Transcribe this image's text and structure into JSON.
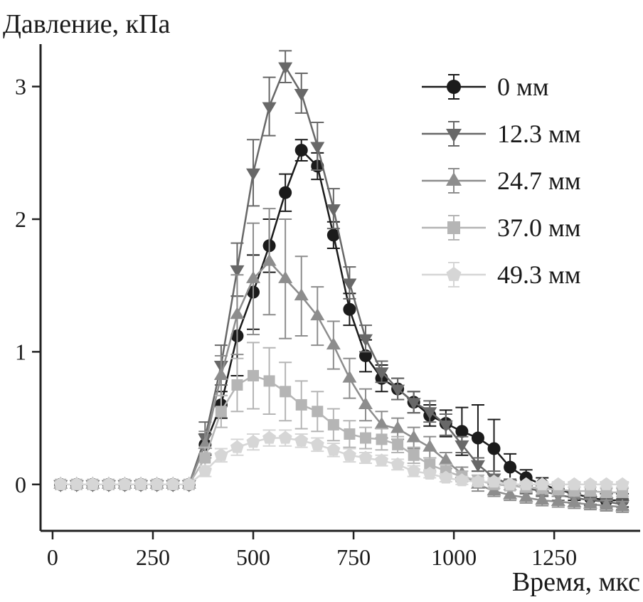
{
  "chart_data": {
    "type": "line",
    "title": "",
    "xlabel": "Время, мкс",
    "ylabel": "Давление, кПа",
    "xlim": [
      -30,
      1450
    ],
    "ylim": [
      -0.35,
      3.32
    ],
    "xticks": [
      0,
      250,
      500,
      750,
      1000,
      1250
    ],
    "yticks": [
      0,
      1,
      2,
      3
    ],
    "grid": false,
    "legend_position": "top-right",
    "x": [
      20,
      60,
      100,
      140,
      180,
      220,
      260,
      300,
      340,
      380,
      420,
      460,
      500,
      540,
      580,
      620,
      660,
      700,
      740,
      780,
      820,
      860,
      900,
      940,
      980,
      1020,
      1060,
      1100,
      1140,
      1180,
      1220,
      1260,
      1300,
      1340,
      1380,
      1420
    ],
    "series": [
      {
        "name": "0 мм",
        "marker": "circle",
        "color": "#1b1b1b",
        "values": [
          0,
          0,
          0,
          0,
          0,
          0,
          0,
          0,
          0,
          0.3,
          0.6,
          1.12,
          1.45,
          1.8,
          2.2,
          2.52,
          2.4,
          1.88,
          1.32,
          0.97,
          0.8,
          0.72,
          0.62,
          0.52,
          0.46,
          0.4,
          0.35,
          0.27,
          0.13,
          0.05,
          0,
          -0.04,
          -0.07,
          -0.1,
          -0.12,
          -0.12
        ],
        "errors": [
          0,
          0,
          0,
          0,
          0,
          0,
          0,
          0,
          0,
          0.08,
          0.1,
          0.3,
          0.28,
          0.2,
          0.14,
          0.08,
          0.1,
          0.1,
          0.12,
          0.12,
          0.1,
          0.08,
          0.08,
          0.08,
          0.1,
          0.18,
          0.25,
          0.22,
          0.1,
          0.06,
          0.05,
          0.05,
          0.05,
          0.05,
          0.05,
          0.05
        ]
      },
      {
        "name": "12.3 мм",
        "marker": "triangle-down",
        "color": "#686868",
        "values": [
          0,
          0,
          0,
          0,
          0,
          0,
          0,
          0,
          0,
          0.35,
          0.9,
          1.62,
          2.35,
          2.85,
          3.15,
          2.95,
          2.55,
          2.08,
          1.52,
          1.1,
          0.85,
          0.72,
          0.62,
          0.55,
          0.45,
          0.3,
          0.15,
          0.05,
          0,
          -0.03,
          -0.05,
          -0.08,
          -0.1,
          -0.12,
          -0.13,
          -0.15
        ],
        "errors": [
          0,
          0,
          0,
          0,
          0,
          0,
          0,
          0,
          0,
          0.12,
          0.15,
          0.2,
          0.25,
          0.22,
          0.12,
          0.15,
          0.18,
          0.15,
          0.12,
          0.1,
          0.08,
          0.08,
          0.08,
          0.08,
          0.08,
          0.06,
          0.05,
          0.05,
          0.04,
          0.04,
          0.04,
          0.04,
          0.04,
          0.04,
          0.04,
          0.04
        ]
      },
      {
        "name": "24.7 мм",
        "marker": "triangle-up",
        "color": "#8d8d8d",
        "values": [
          0,
          0,
          0,
          0,
          0,
          0,
          0,
          0,
          0,
          0.3,
          0.82,
          1.28,
          1.55,
          1.68,
          1.55,
          1.42,
          1.27,
          1.05,
          0.8,
          0.6,
          0.45,
          0.42,
          0.35,
          0.28,
          0.18,
          0.08,
          0,
          -0.05,
          -0.08,
          -0.1,
          -0.12,
          -0.13,
          -0.14,
          -0.15,
          -0.16,
          -0.17
        ],
        "errors": [
          0,
          0,
          0,
          0,
          0,
          0,
          0,
          0,
          0,
          0.1,
          0.15,
          0.3,
          0.42,
          0.4,
          0.45,
          0.3,
          0.22,
          0.18,
          0.15,
          0.12,
          0.1,
          0.08,
          0.08,
          0.08,
          0.06,
          0.05,
          0.05,
          0.04,
          0.04,
          0.04,
          0.04,
          0.04,
          0.04,
          0.04,
          0.04,
          0.04
        ]
      },
      {
        "name": "37.0 мм",
        "marker": "square",
        "color": "#b5b5b5",
        "values": [
          0,
          0,
          0,
          0,
          0,
          0,
          0,
          0,
          0,
          0.2,
          0.55,
          0.75,
          0.82,
          0.78,
          0.7,
          0.6,
          0.55,
          0.45,
          0.38,
          0.35,
          0.34,
          0.3,
          0.22,
          0.15,
          0.1,
          0.06,
          0.03,
          0,
          -0.01,
          -0.02,
          -0.03,
          -0.04,
          -0.05,
          -0.05,
          -0.06,
          -0.06
        ],
        "errors": [
          0,
          0,
          0,
          0,
          0,
          0,
          0,
          0,
          0,
          0.08,
          0.12,
          0.2,
          0.25,
          0.25,
          0.22,
          0.18,
          0.15,
          0.12,
          0.1,
          0.08,
          0.08,
          0.06,
          0.06,
          0.05,
          0.05,
          0.04,
          0.04,
          0.03,
          0.03,
          0.03,
          0.03,
          0.03,
          0.03,
          0.03,
          0.03,
          0.03
        ]
      },
      {
        "name": "49.3 мм",
        "marker": "pentagon",
        "color": "#d6d6d6",
        "values": [
          0,
          0,
          0,
          0,
          0,
          0,
          0,
          0,
          0,
          0.1,
          0.22,
          0.28,
          0.32,
          0.35,
          0.35,
          0.33,
          0.3,
          0.26,
          0.22,
          0.2,
          0.18,
          0.15,
          0.1,
          0.08,
          0.05,
          0.03,
          0.02,
          0.02,
          0,
          0,
          0,
          0,
          0,
          0,
          0,
          0
        ],
        "errors": [
          0,
          0,
          0,
          0,
          0,
          0,
          0,
          0,
          0,
          0.04,
          0.05,
          0.06,
          0.06,
          0.06,
          0.06,
          0.05,
          0.05,
          0.05,
          0.05,
          0.04,
          0.04,
          0.04,
          0.04,
          0.03,
          0.03,
          0.03,
          0.03,
          0.03,
          0.02,
          0.02,
          0.02,
          0.02,
          0.02,
          0.02,
          0.02,
          0.02
        ]
      }
    ]
  }
}
